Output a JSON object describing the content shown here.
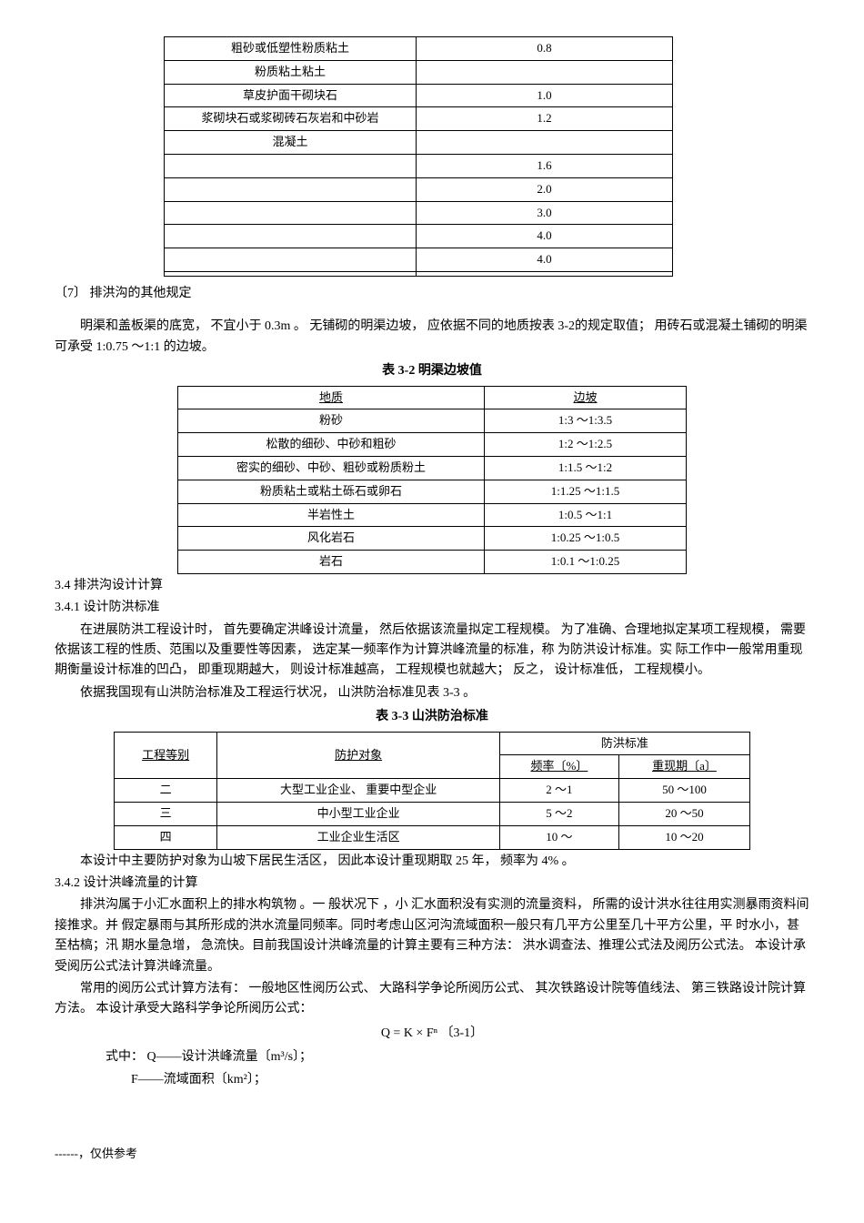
{
  "table1": {
    "rows": [
      [
        "粗砂或低塑性粉质粘土",
        "0.8"
      ],
      [
        "粉质粘土粘土",
        ""
      ],
      [
        "草皮护面干砌块石",
        "1.0"
      ],
      [
        "浆砌块石或浆砌砖石灰岩和中砂岩",
        "1.2"
      ],
      [
        "混凝土",
        ""
      ],
      [
        "",
        "1.6"
      ],
      [
        "",
        "2.0"
      ],
      [
        "",
        "3.0"
      ],
      [
        "",
        "4.0"
      ],
      [
        "",
        "4.0"
      ],
      [
        "",
        ""
      ]
    ]
  },
  "section7": {
    "title": "〔7〕 排洪沟的其他规定",
    "para": "明渠和盖板渠的底宽， 不宜小于 0.3m 。 无铺砌的明渠边坡， 应依据不同的地质按表 3-2的规定取值； 用砖石或混凝土铺砌的明渠可承受 1:0.75 ～1:1 的边坡。"
  },
  "table2": {
    "title": "表 3-2   明渠边坡值",
    "header": [
      "地质",
      "边坡"
    ],
    "rows": [
      [
        "粉砂",
        "1:3  ～1:3.5"
      ],
      [
        "松散的细砂、中砂和粗砂",
        "1:2  ～1:2.5"
      ],
      [
        "密实的细砂、中砂、粗砂或粉质粉土",
        "1:1.5  ～1:2"
      ],
      [
        "粉质粘土或粘土砾石或卵石",
        "1:1.25   ～1:1.5"
      ],
      [
        "半岩性土",
        "1:0.5   ～1:1"
      ],
      [
        "风化岩石",
        "1:0.25   ～1:0.5"
      ],
      [
        "岩石",
        "1:0.1   ～1:0.25"
      ]
    ]
  },
  "section34": {
    "title": "3.4  排洪沟设计计算"
  },
  "section341": {
    "title": "3.4.1  设计防洪标准",
    "para1": "在进展防洪工程设计时， 首先要确定洪峰设计流量， 然后依据该流量拟定工程规模。 为了准确、合理地拟定某项工程规模， 需要依据该工程的性质、范围以及重要性等因素， 选定某一频率作为计算洪峰流量的标准，称  为防洪设计标准。实  际工作中一般常用重现期衡量设计标准的凹凸， 即重现期越大， 则设计标准越高， 工程规模也就越大； 反之， 设计标准低， 工程规模小。",
    "para2": "依据我国现有山洪防治标准及工程运行状况， 山洪防治标准见表 3-3 。"
  },
  "table3": {
    "title": "表 3-3    山洪防治标准",
    "header1": [
      "工程等别",
      "防护对象",
      "防洪标准"
    ],
    "header2": [
      "频率〔%〕",
      "重现期〔a〕"
    ],
    "rows": [
      [
        "二",
        "大型工业企业、 重要中型企业",
        "2 ～1",
        "50 ～100"
      ],
      [
        "三",
        "中小型工业企业",
        "5 ～2",
        "20 ～50"
      ],
      [
        "四",
        "工业企业生活区",
        "10 ～",
        "10 ～20"
      ]
    ],
    "note": "本设计中主要防护对象为山坡下居民生活区， 因此本设计重现期取 25 年， 频率为 4% 。"
  },
  "section342": {
    "title": "3.4.2  设计洪峰流量的计算",
    "para1": "排洪沟属于小汇水面积上的排水构筑物 。一 般状况下 ，小 汇水面积没有实测的流量资料， 所需的设计洪水往往用实测暴雨资料间接推求。并 假定暴雨与其所形成的洪水流量同频率。同时考虑山区河沟流域面积一般只有几平方公里至几十平方公里，平 时水小，甚 至枯槁；汛 期水量急增， 急流快。目前我国设计洪峰流量的计算主要有三种方法： 洪水调查法、推理公式法及阅历公式法。 本设计承受阅历公式法计算洪峰流量。",
    "para2": "常用的阅历公式计算方法有： 一般地区性阅历公式、 大路科学争论所阅历公式、 其次铁路设计院等值线法、 第三铁路设计院计算方法。 本设计承受大路科学争论所阅历公式：",
    "formula": "Q = K × Fⁿ         〔3-1〕",
    "formula_desc1": "式中：  Q——设计洪峰流量〔m³/s〕；",
    "formula_desc2": "F——流域面积〔km²〕；"
  },
  "footer": "------，仅供参考"
}
